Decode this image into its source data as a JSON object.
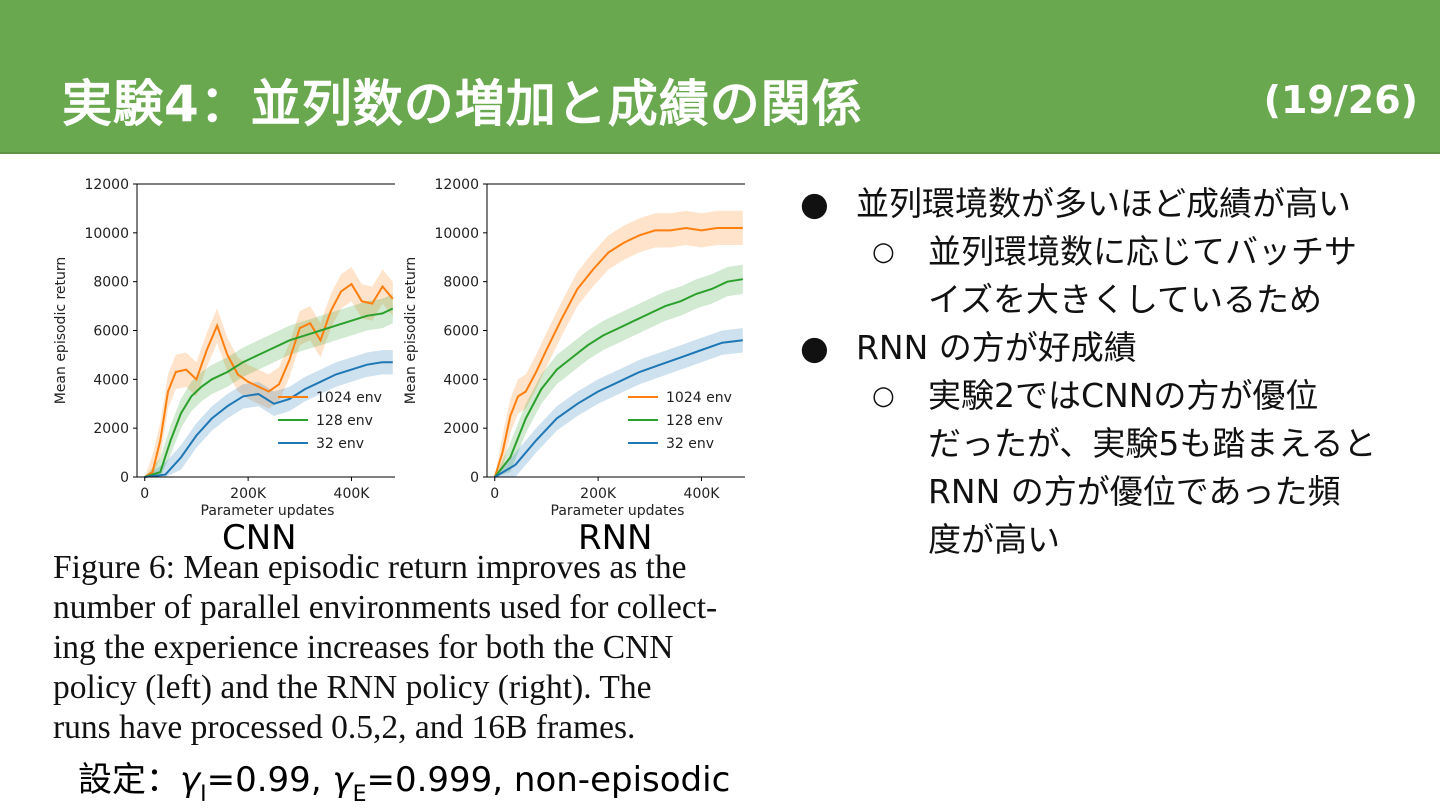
{
  "slide": {
    "title": "実験4：並列数の増加と成績の関係",
    "page_number": "(19/26)",
    "panel_labels": [
      "CNN",
      "RNN"
    ],
    "caption_lines": [
      "Figure 6: Mean episodic return improves as the",
      "number of parallel environments used for collect-",
      "ing the experience increases for both the CNN",
      "policy (left) and the RNN policy (right).  The",
      "runs have processed 0.5,2, and 16B frames."
    ],
    "settings": {
      "prefix": "設定：",
      "gamma_symbol": "γ",
      "sub_i": "I",
      "val_i": "=0.99, ",
      "sub_e": "E",
      "val_e": "=0.999, non-episodic"
    },
    "bullets": [
      {
        "text": "並列環境数が多いほど成績が高い",
        "sub": [
          "並列環境数に応じてバッチサイズを大きくしているため"
        ]
      },
      {
        "text": "RNN の方が好成績",
        "sub": [
          "実験2ではCNNの方が優位だったが、実験5も踏まえるとRNN の方が優位であった頻度が高い"
        ]
      }
    ],
    "bullet_symbol": "●",
    "sub_bullet_symbol": "○",
    "sub_lines": [
      [
        "並列環境数に応じてバッチサ",
        "イズを大きくしているため"
      ],
      [
        "実験2ではCNNの方が優位",
        "だったが、実験5も踏まえると",
        "RNN の方が優位であった頻",
        "度が高い"
      ]
    ]
  },
  "colors": {
    "header": "#6aa84f",
    "orange": "#ff7f0e",
    "green": "#2ca02c",
    "blue": "#1f77b4"
  },
  "chart_data": [
    {
      "type": "line",
      "name": "CNN",
      "xlabel": "Parameter updates",
      "ylabel": "Mean episodic return",
      "xlim": [
        -15000,
        490000
      ],
      "ylim": [
        0,
        12000
      ],
      "xticks": [
        0,
        200000,
        400000
      ],
      "xtick_labels": [
        "0",
        "200K",
        "400K"
      ],
      "yticks": [
        0,
        2000,
        4000,
        6000,
        8000,
        10000,
        12000
      ],
      "ytick_labels": [
        "0",
        "2000",
        "4000",
        "6000",
        "8000",
        "10000",
        "12000"
      ],
      "legend_position": "lower-right",
      "series": [
        {
          "name": "1024 env",
          "color": "#ff7f0e",
          "x": [
            0,
            15000,
            30000,
            45000,
            60000,
            80000,
            100000,
            120000,
            140000,
            160000,
            180000,
            200000,
            220000,
            240000,
            260000,
            280000,
            300000,
            320000,
            340000,
            360000,
            380000,
            400000,
            420000,
            440000,
            460000,
            480000
          ],
          "y": [
            0,
            200,
            1500,
            3500,
            4300,
            4400,
            4000,
            5200,
            6200,
            5000,
            4200,
            3900,
            3700,
            3500,
            3800,
            4800,
            6100,
            6300,
            5600,
            6800,
            7600,
            7900,
            7200,
            7100,
            7800,
            7300
          ],
          "band": 700
        },
        {
          "name": "128 env",
          "color": "#2ca02c",
          "x": [
            0,
            30000,
            50000,
            70000,
            90000,
            110000,
            130000,
            160000,
            190000,
            220000,
            250000,
            280000,
            310000,
            340000,
            370000,
            400000,
            430000,
            460000,
            480000
          ],
          "y": [
            0,
            200,
            1500,
            2600,
            3300,
            3700,
            4000,
            4300,
            4700,
            5000,
            5300,
            5600,
            5800,
            6000,
            6200,
            6400,
            6600,
            6700,
            6900
          ],
          "band": 600
        },
        {
          "name": "32 env",
          "color": "#1f77b4",
          "x": [
            0,
            40000,
            70000,
            100000,
            130000,
            160000,
            190000,
            220000,
            250000,
            280000,
            310000,
            340000,
            370000,
            400000,
            430000,
            460000,
            480000
          ],
          "y": [
            0,
            100,
            800,
            1700,
            2400,
            2900,
            3300,
            3400,
            3000,
            3200,
            3600,
            3900,
            4200,
            4400,
            4600,
            4700,
            4700
          ],
          "band": 500
        }
      ]
    },
    {
      "type": "line",
      "name": "RNN",
      "xlabel": "Parameter updates",
      "ylabel": "Mean episodic return",
      "xlim": [
        -15000,
        490000
      ],
      "ylim": [
        0,
        12000
      ],
      "xticks": [
        0,
        200000,
        400000
      ],
      "xtick_labels": [
        "0",
        "200K",
        "400K"
      ],
      "yticks": [
        0,
        2000,
        4000,
        6000,
        8000,
        10000,
        12000
      ],
      "ytick_labels": [
        "0",
        "2000",
        "4000",
        "6000",
        "8000",
        "10000",
        "12000"
      ],
      "legend_position": "lower-right",
      "series": [
        {
          "name": "1024 env",
          "color": "#ff7f0e",
          "x": [
            0,
            15000,
            30000,
            45000,
            60000,
            80000,
            100000,
            130000,
            160000,
            190000,
            220000,
            250000,
            280000,
            310000,
            340000,
            370000,
            400000,
            430000,
            460000,
            480000
          ],
          "y": [
            0,
            1000,
            2500,
            3300,
            3500,
            4300,
            5200,
            6500,
            7700,
            8500,
            9200,
            9600,
            9900,
            10100,
            10100,
            10200,
            10100,
            10200,
            10200,
            10200
          ],
          "band": 700
        },
        {
          "name": "128 env",
          "color": "#2ca02c",
          "x": [
            0,
            30000,
            60000,
            90000,
            120000,
            150000,
            180000,
            210000,
            240000,
            270000,
            300000,
            330000,
            360000,
            390000,
            420000,
            450000,
            480000
          ],
          "y": [
            0,
            800,
            2400,
            3600,
            4400,
            4900,
            5400,
            5800,
            6100,
            6400,
            6700,
            7000,
            7200,
            7500,
            7700,
            8000,
            8100
          ],
          "band": 600
        },
        {
          "name": "32 env",
          "color": "#1f77b4",
          "x": [
            0,
            40000,
            80000,
            120000,
            160000,
            200000,
            240000,
            280000,
            320000,
            360000,
            400000,
            440000,
            480000
          ],
          "y": [
            0,
            500,
            1500,
            2400,
            3000,
            3500,
            3900,
            4300,
            4600,
            4900,
            5200,
            5500,
            5600
          ],
          "band": 500
        }
      ]
    }
  ]
}
